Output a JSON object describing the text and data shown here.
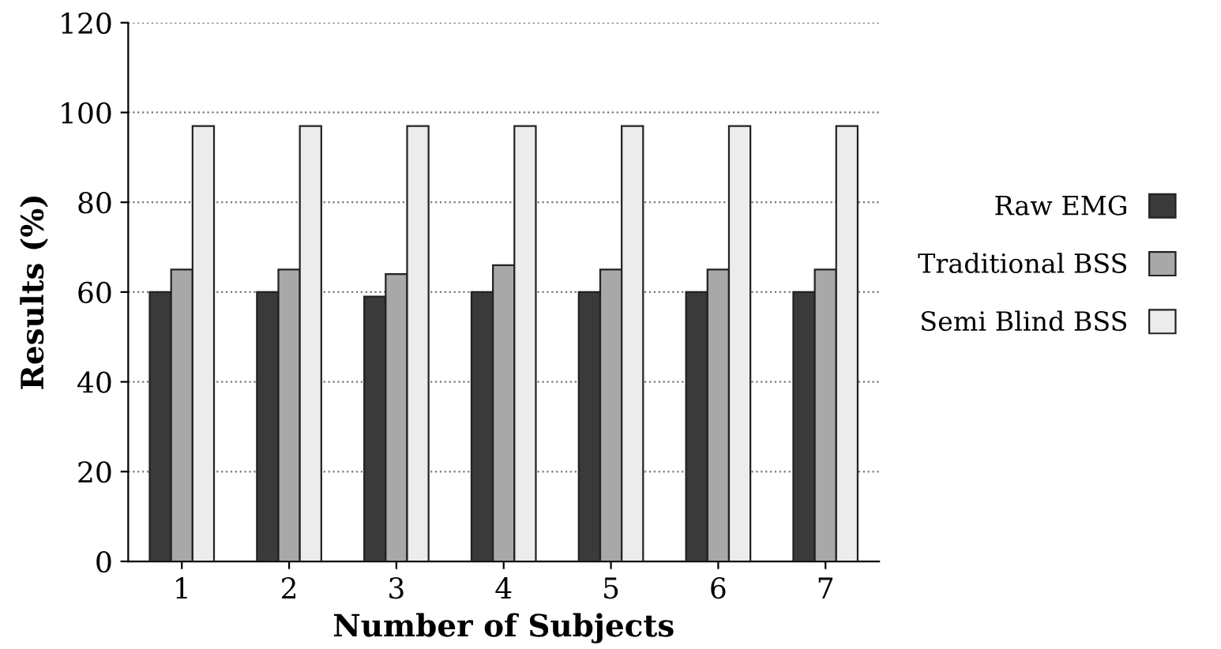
{
  "chart_data": {
    "type": "bar",
    "xlabel": "Number of Subjects",
    "ylabel": "Results (%)",
    "categories": [
      "1",
      "2",
      "3",
      "4",
      "5",
      "6",
      "7"
    ],
    "series": [
      {
        "name": "Raw EMG",
        "color": "#3a3a3a",
        "values": [
          60,
          60,
          59,
          60,
          60,
          60,
          60
        ]
      },
      {
        "name": "Traditional BSS",
        "color": "#a8a8a8",
        "values": [
          65,
          65,
          64,
          66,
          65,
          65,
          65
        ]
      },
      {
        "name": "Semi Blind BSS",
        "color": "#ececec",
        "values": [
          97,
          97,
          97,
          97,
          97,
          97,
          97
        ]
      }
    ],
    "ylim": [
      0,
      120
    ],
    "yticks": [
      0,
      20,
      40,
      60,
      80,
      100,
      120
    ],
    "grid": "y",
    "legend": "right"
  }
}
